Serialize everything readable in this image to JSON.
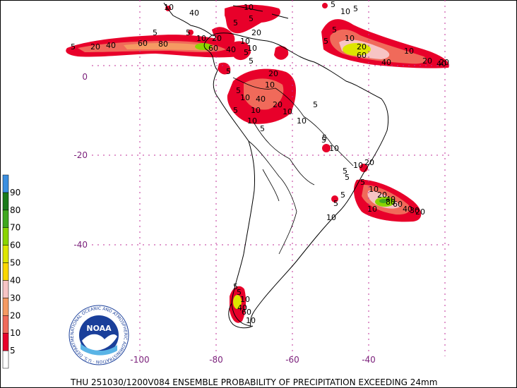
{
  "caption": "THU 251030/1200V084  ENSEMBLE PROBABILITY OF PRECIPITATION EXCEEDING 24mm",
  "lat_labels": [
    "0",
    "-20",
    "-40"
  ],
  "lon_labels": [
    "-100",
    "-80",
    "-60",
    "-40"
  ],
  "legend": {
    "levels": [
      "5",
      "10",
      "20",
      "30",
      "40",
      "50",
      "60",
      "70",
      "80",
      "90"
    ],
    "colors": [
      "#ffffff",
      "#e8002a",
      "#f06a5a",
      "#f59a62",
      "#f7c4c4",
      "#fbd700",
      "#dde600",
      "#8ad400",
      "#3fa81f",
      "#1a7a1a",
      "#3b8fe0"
    ]
  },
  "logo": {
    "text": "NOAA",
    "ring_text": "NATIONAL OCEANIC AND ATMOSPHERIC ADMINISTRATION · U.S. DEPARTMENT OF COMMERCE"
  },
  "contour_labels": {
    "pacific_itcz": [
      "5",
      "20",
      "40",
      "60",
      "80",
      "5",
      "10",
      "20",
      "40",
      "60",
      "5",
      "10",
      "40",
      "5"
    ],
    "atlantic_north": [
      "5",
      "10",
      "20",
      "40",
      "60",
      "10",
      "20",
      "40",
      "20",
      "5",
      "5",
      "10",
      "5"
    ],
    "caribbean": [
      "10",
      "5",
      "20",
      "10",
      "5",
      "5"
    ],
    "amazon": [
      "5",
      "10",
      "20",
      "10",
      "40",
      "10",
      "10",
      "20",
      "10",
      "5",
      "5",
      "10",
      "10",
      "5",
      "5",
      "10",
      "5"
    ],
    "south_atlantic": [
      "5",
      "10",
      "20",
      "40",
      "60",
      "80",
      "40",
      "30",
      "20",
      "10",
      "5",
      "5",
      "10",
      "5",
      "10",
      "20",
      "5",
      "5"
    ],
    "patagonia": [
      "5",
      "10",
      "40",
      "60",
      "10",
      "5"
    ]
  }
}
